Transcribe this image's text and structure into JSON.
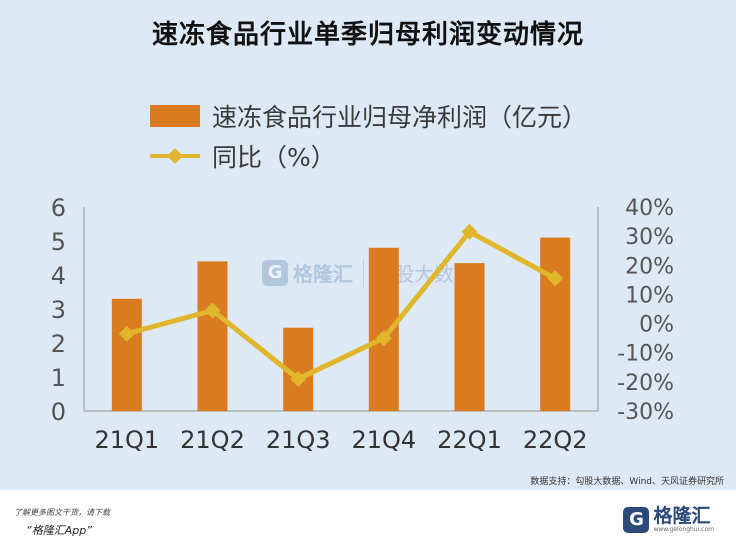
{
  "title": "速冻食品行业单季归母利润变动情况",
  "legend": {
    "bar_label": "速冻食品行业归母净利润（亿元）",
    "line_label": "同比（%）"
  },
  "source": "数据支持：勾股大数据、Wind、天风证券研究所",
  "watermark": {
    "brand": "格隆汇",
    "brand2": "勾股大数据"
  },
  "footer": {
    "note": "了解更多图文干货，请下载",
    "app": "“格隆汇App”",
    "logo_text": "格隆汇",
    "logo_url": "www.gelonghui.com"
  },
  "colors": {
    "bar": "#d97b1e",
    "line": "#e0b62c",
    "axis_text": "#555555"
  },
  "chart_data": {
    "type": "bar",
    "categories": [
      "21Q1",
      "21Q2",
      "21Q3",
      "21Q4",
      "22Q1",
      "22Q2"
    ],
    "series": [
      {
        "name": "速冻食品行业归母净利润（亿元）",
        "type": "bar",
        "axis": "left",
        "values": [
          3.3,
          4.4,
          2.45,
          4.8,
          4.35,
          5.1
        ]
      },
      {
        "name": "同比（%）",
        "type": "line",
        "axis": "right",
        "values": [
          -3.5,
          4.5,
          -19,
          -5,
          31.5,
          15.5
        ]
      }
    ],
    "y_left": {
      "lim": [
        0,
        6
      ],
      "ticks": [
        "0",
        "1",
        "2",
        "3",
        "4",
        "5",
        "6"
      ]
    },
    "y_right": {
      "lim": [
        -30,
        40
      ],
      "ticks": [
        "-30%",
        "-20%",
        "-10%",
        "0%",
        "10%",
        "20%",
        "30%",
        "40%"
      ]
    },
    "legend_position": "top-left",
    "grid": false
  }
}
